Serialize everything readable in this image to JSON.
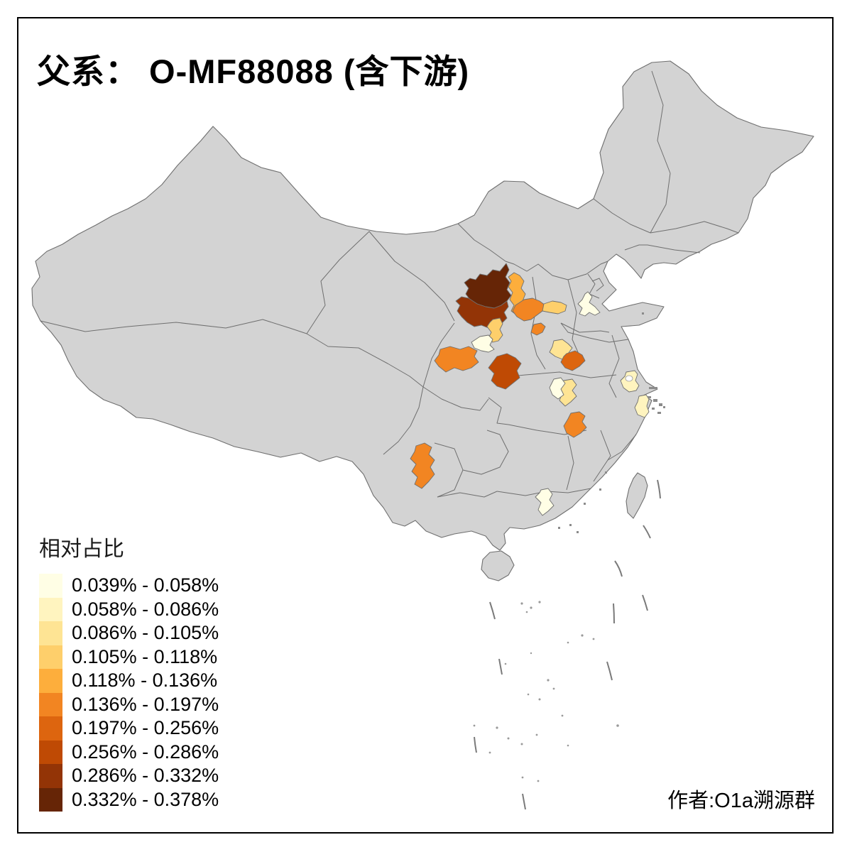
{
  "title": "父系： O-MF88088 (含下游)",
  "attribution": "作者:O1a溯源群",
  "legend": {
    "title": "相对占比",
    "bins": [
      {
        "label": "0.039% - 0.058%",
        "color": "#FFFEE5"
      },
      {
        "label": "0.058% - 0.086%",
        "color": "#FFF4BF"
      },
      {
        "label": "0.086% - 0.105%",
        "color": "#FEE494"
      },
      {
        "label": "0.105% - 0.118%",
        "color": "#FECF6B"
      },
      {
        "label": "0.118% - 0.136%",
        "color": "#FDAE3C"
      },
      {
        "label": "0.136% - 0.197%",
        "color": "#F28522"
      },
      {
        "label": "0.197% - 0.256%",
        "color": "#DD650F"
      },
      {
        "label": "0.256% - 0.286%",
        "color": "#BF4A04"
      },
      {
        "label": "0.286% - 0.332%",
        "color": "#933406"
      },
      {
        "label": "0.332% - 0.378%",
        "color": "#662506"
      }
    ]
  },
  "map": {
    "background": "#FFFFFF",
    "land_color": "#D3D3D3",
    "border_color": "#6F6F6F",
    "regions": [
      {
        "id": "r1",
        "bin": 9
      },
      {
        "id": "r2",
        "bin": 8
      },
      {
        "id": "r3",
        "bin": 4
      },
      {
        "id": "r4",
        "bin": 5
      },
      {
        "id": "r5",
        "bin": 3
      },
      {
        "id": "r6",
        "bin": 0
      },
      {
        "id": "r7",
        "bin": 5
      },
      {
        "id": "r8",
        "bin": 3
      },
      {
        "id": "r9",
        "bin": 0
      },
      {
        "id": "r10",
        "bin": 5
      },
      {
        "id": "r11",
        "bin": 7
      },
      {
        "id": "r12",
        "bin": 2
      },
      {
        "id": "r13",
        "bin": 6
      },
      {
        "id": "r14a",
        "bin": 0
      },
      {
        "id": "r14b",
        "bin": 2
      },
      {
        "id": "r15",
        "bin": 1
      },
      {
        "id": "r16",
        "bin": 1
      },
      {
        "id": "r17",
        "bin": 5
      },
      {
        "id": "r18",
        "bin": 5
      },
      {
        "id": "r19",
        "bin": 0
      }
    ]
  }
}
